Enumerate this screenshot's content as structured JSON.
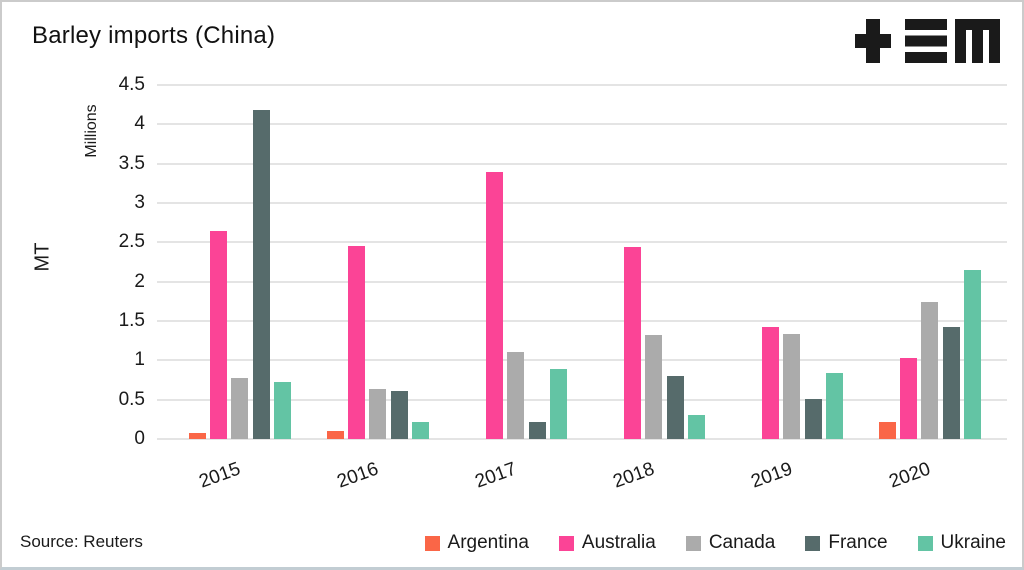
{
  "header": {
    "title": "Barley imports (China)",
    "logo_name": "tem-logo",
    "logo_color": "#1a1a1a"
  },
  "source": "Source: Reuters",
  "chart_data": {
    "type": "bar",
    "title": "Barley imports (China)",
    "xlabel": "",
    "ylabel": "MT",
    "y_unit": "Millions",
    "categories": [
      "2015",
      "2016",
      "2017",
      "2018",
      "2019",
      "2020"
    ],
    "y_ticks": [
      "0",
      "0.5",
      "1",
      "1.5",
      "2",
      "2.5",
      "3",
      "3.5",
      "4",
      "4.5"
    ],
    "ylim": [
      0,
      4.5
    ],
    "grid": "horizontal",
    "legend_position": "bottom-right",
    "gridline_color": "#e4e4e4",
    "series": [
      {
        "name": "Argentina",
        "color": "#fa6647",
        "values": [
          0.07,
          0.1,
          0,
          0,
          0,
          0.21
        ]
      },
      {
        "name": "Australia",
        "color": "#fb4496",
        "values": [
          2.65,
          2.45,
          3.39,
          2.44,
          1.43,
          1.03
        ]
      },
      {
        "name": "Canada",
        "color": "#ababab",
        "values": [
          0.77,
          0.63,
          1.1,
          1.32,
          1.33,
          1.74
        ]
      },
      {
        "name": "France",
        "color": "#566b6b",
        "values": [
          4.18,
          0.61,
          0.21,
          0.8,
          0.51,
          1.42
        ]
      },
      {
        "name": "Ukraine",
        "color": "#63c4a4",
        "values": [
          0.73,
          0.22,
          0.89,
          0.31,
          0.84,
          2.15
        ]
      }
    ]
  }
}
